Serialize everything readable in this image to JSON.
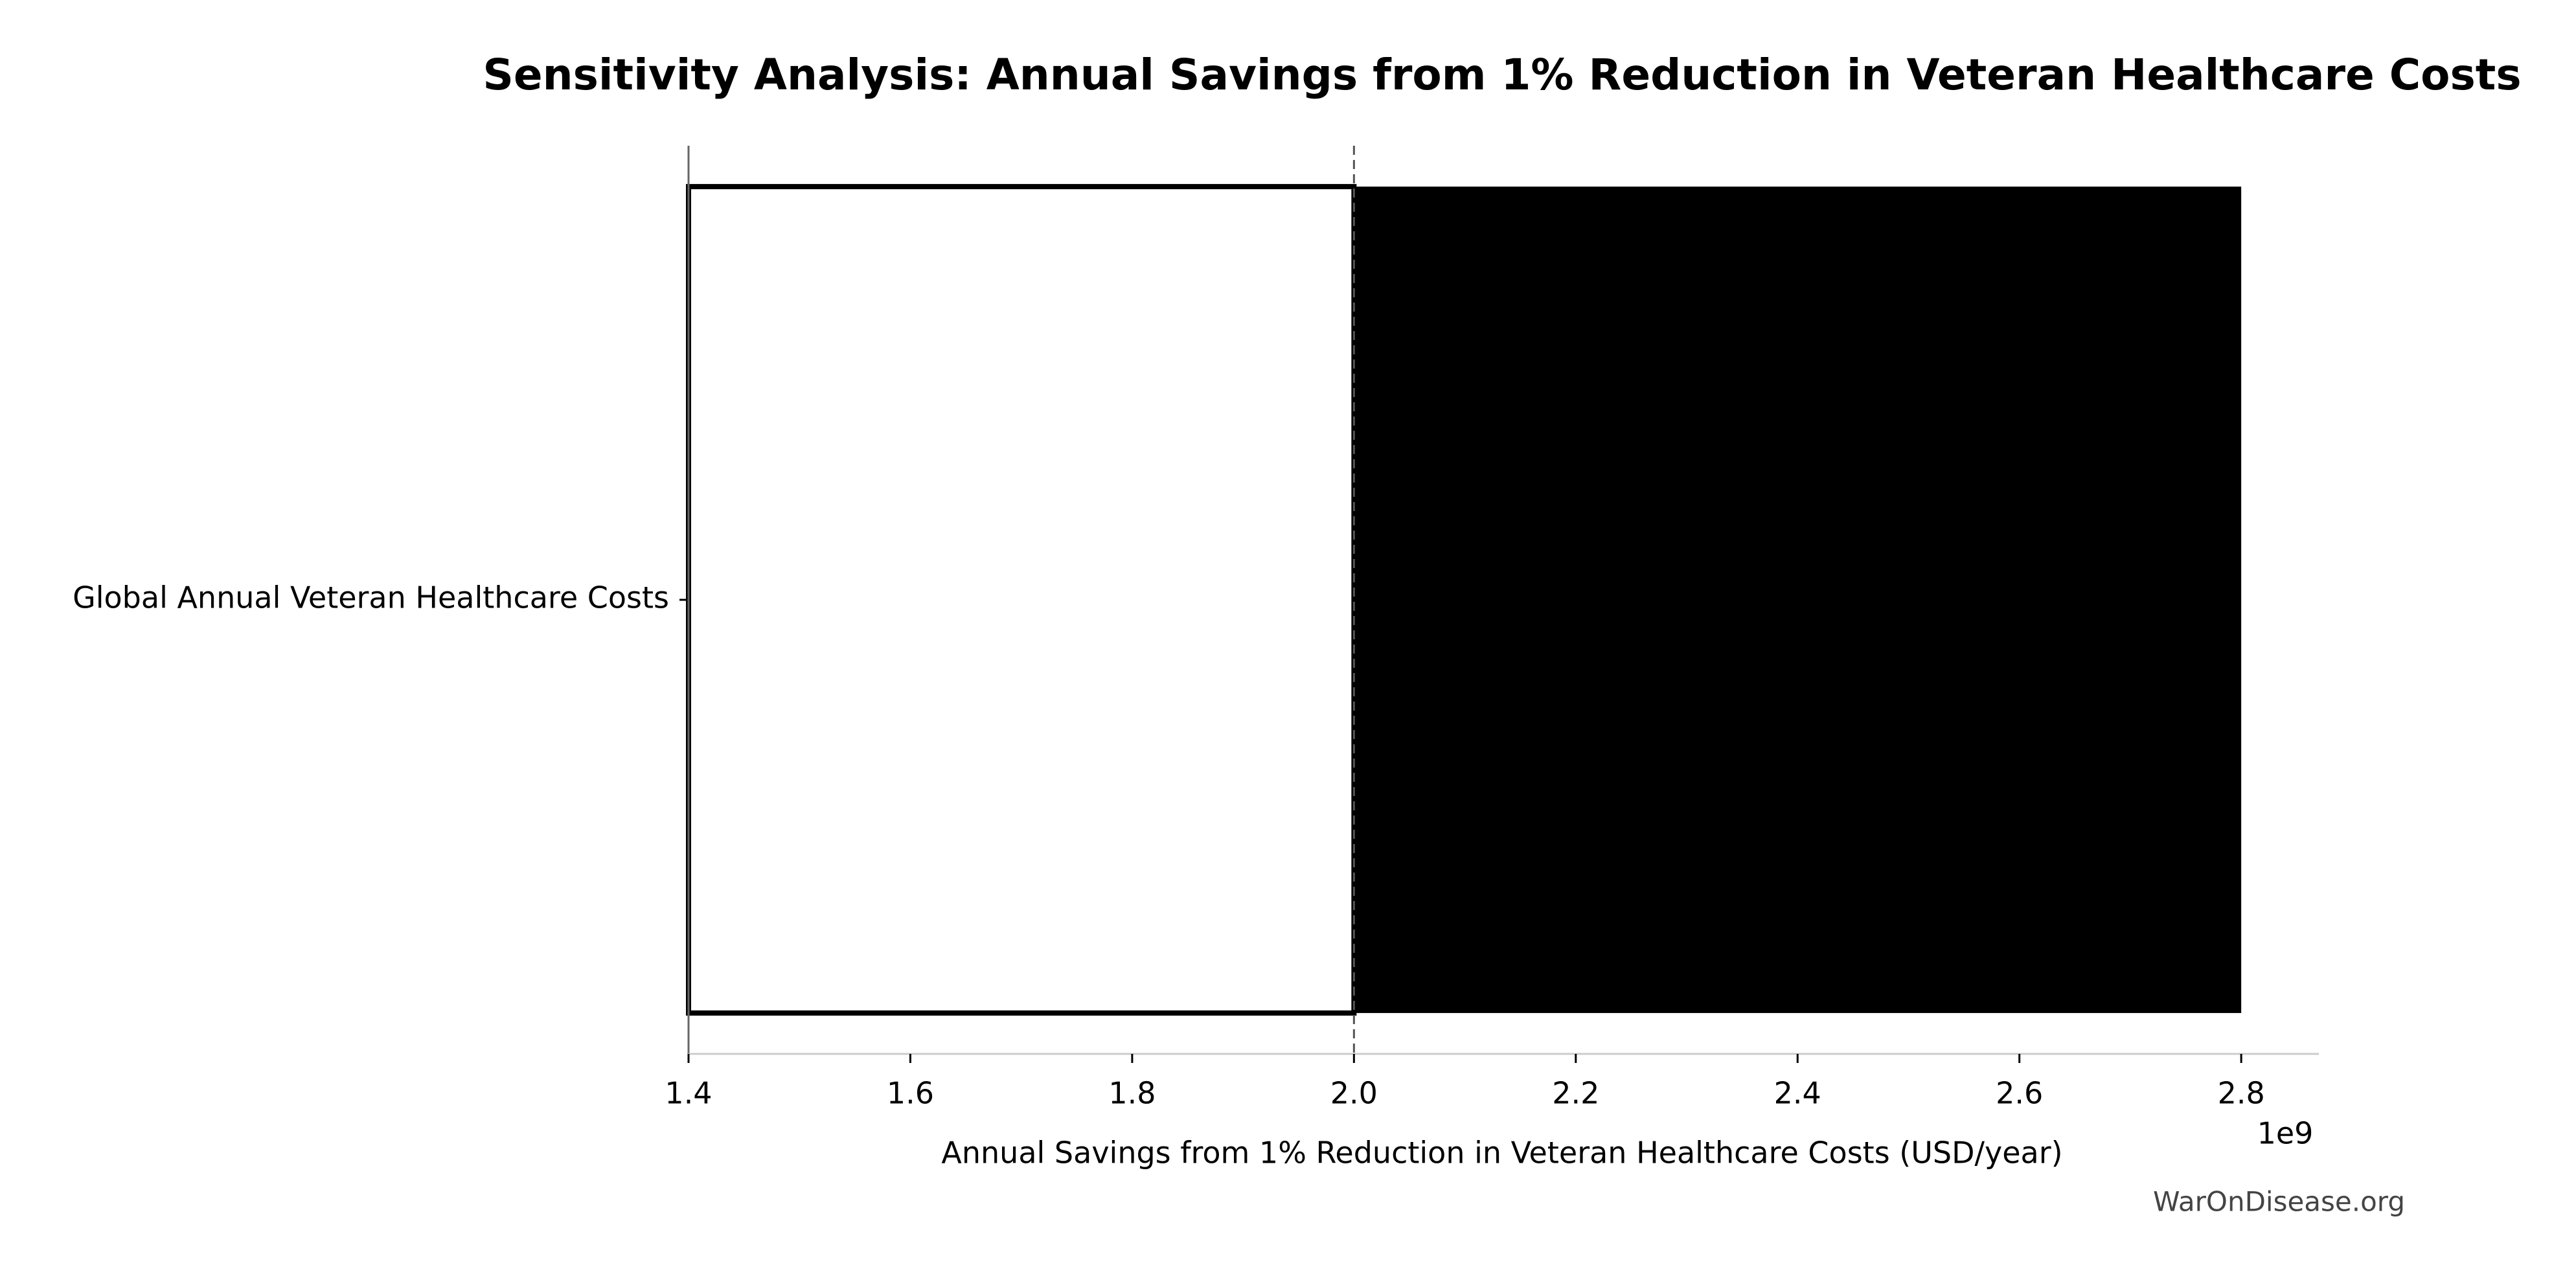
{
  "chart_data": {
    "type": "tornado",
    "title": "Sensitivity Analysis: Annual Savings from 1% Reduction in Veteran Healthcare Costs",
    "xlabel": "Annual Savings from 1% Reduction in Veteran Healthcare Costs (USD/year)",
    "x_offset_label": "1e9",
    "categories": [
      "Global Annual Veteran Healthcare Costs"
    ],
    "baseline": 2000000000,
    "low": [
      1400000000
    ],
    "high": [
      2800000000
    ],
    "low_color": "#ffffff",
    "high_color": "#000000",
    "edge_color": "#000000",
    "xlim": [
      1400000000,
      2870000000
    ],
    "xticks": [
      {
        "value": 1400000000,
        "label": "1.4"
      },
      {
        "value": 1600000000,
        "label": "1.6"
      },
      {
        "value": 1800000000,
        "label": "1.8"
      },
      {
        "value": 2000000000,
        "label": "2.0"
      },
      {
        "value": 2200000000,
        "label": "2.2"
      },
      {
        "value": 2400000000,
        "label": "2.4"
      },
      {
        "value": 2600000000,
        "label": "2.6"
      },
      {
        "value": 2800000000,
        "label": "2.8"
      }
    ],
    "watermark": "WarOnDisease.org"
  }
}
